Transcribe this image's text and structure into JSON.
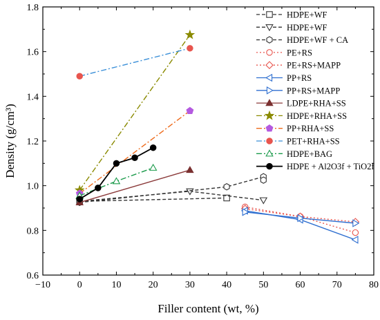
{
  "chart_data": {
    "type": "line",
    "xlabel": "Filler content (wt, %)",
    "ylabel": "Density (g/cm³)",
    "xlim": [
      -10,
      80
    ],
    "ylim": [
      0.6,
      1.8
    ],
    "xticks": [
      -10,
      0,
      10,
      20,
      30,
      40,
      50,
      60,
      70,
      80
    ],
    "yticks": [
      0.6,
      0.8,
      1.0,
      1.2,
      1.4,
      1.6,
      1.8
    ],
    "xtick_labels": [
      "−10",
      "0",
      "10",
      "20",
      "30",
      "40",
      "50",
      "60",
      "70",
      "80"
    ],
    "ytick_labels": [
      "0.6",
      "0.8",
      "1.0",
      "1.2",
      "1.4",
      "1.6",
      "1.8"
    ],
    "grid": false,
    "legend_position": "top-right",
    "series": [
      {
        "name": "HDPE+WF",
        "color": "#333333",
        "marker": "square",
        "filled": false,
        "dash": "5,3",
        "points": [
          [
            0,
            0.93
          ],
          [
            40,
            0.945
          ]
        ]
      },
      {
        "name": "HDPE+WF",
        "color": "#333333",
        "marker": "triangle-down",
        "filled": false,
        "dash": "5,3",
        "points": [
          [
            0,
            0.93
          ],
          [
            30,
            0.975
          ],
          [
            50,
            0.935
          ]
        ]
      },
      {
        "name": "HDPE+WF + CA",
        "color": "#333333",
        "marker": "hexagon",
        "filled": false,
        "dash": "5,3",
        "points": [
          [
            0,
            0.925
          ],
          [
            40,
            0.995
          ],
          [
            50,
            1.04
          ],
          [
            50,
            1.025
          ]
        ]
      },
      {
        "name": "PE+RS",
        "color": "#e8554e",
        "marker": "circle",
        "filled": false,
        "dash": "2,3",
        "points": [
          [
            45,
            0.905
          ],
          [
            60,
            0.862
          ],
          [
            75,
            0.79
          ]
        ]
      },
      {
        "name": "PE+RS+MAPP",
        "color": "#e8554e",
        "marker": "diamond",
        "filled": false,
        "dash": "2,3",
        "points": [
          [
            45,
            0.897
          ],
          [
            60,
            0.862
          ],
          [
            75,
            0.838
          ]
        ]
      },
      {
        "name": "PP+RS",
        "color": "#2f6fd0",
        "marker": "triangle-left",
        "filled": false,
        "dash": "",
        "points": [
          [
            45,
            0.888
          ],
          [
            60,
            0.848
          ],
          [
            75,
            0.758
          ]
        ]
      },
      {
        "name": "PP+RS+MAPP",
        "color": "#2f6fd0",
        "marker": "triangle-right",
        "filled": false,
        "dash": "",
        "points": [
          [
            45,
            0.882
          ],
          [
            60,
            0.855
          ],
          [
            75,
            0.832
          ]
        ]
      },
      {
        "name": "LDPE+RHA+SS",
        "color": "#8b3a3a",
        "marker": "triangle-up",
        "filled": true,
        "dash": "",
        "points": [
          [
            0,
            0.925
          ],
          [
            30,
            1.07
          ]
        ]
      },
      {
        "name": "HDPE+RHA+SS",
        "color": "#8a8a00",
        "marker": "star",
        "filled": true,
        "dash": "8,3,2,3",
        "points": [
          [
            0,
            0.98
          ],
          [
            30,
            1.675
          ]
        ]
      },
      {
        "name": "PP+RHA+SS",
        "color": "#ee6a1a",
        "marker": "pentagon",
        "filled": true,
        "dash": "8,3,2,3",
        "points": [
          [
            0,
            0.965
          ],
          [
            30,
            1.335
          ]
        ]
      },
      {
        "name": "PET+RHA+SS",
        "color": "#3a8fd8",
        "marker": "circle",
        "filled": true,
        "dash": "8,3,2,3",
        "points": [
          [
            0,
            1.49
          ],
          [
            30,
            1.615
          ]
        ]
      },
      {
        "name": "HDPE+BAG",
        "color": "#1a9a4a",
        "marker": "triangle-up",
        "filled": false,
        "dash": "8,3,2,3",
        "points": [
          [
            0,
            0.955
          ],
          [
            10,
            1.02
          ],
          [
            20,
            1.08
          ]
        ]
      },
      {
        "name": "HDPE + Al2O3f + TiO2f",
        "color": "#000000",
        "marker": "circle",
        "filled": true,
        "dash": "",
        "points": [
          [
            0,
            0.94
          ],
          [
            5,
            0.99
          ],
          [
            10,
            1.1
          ],
          [
            15,
            1.125
          ],
          [
            20,
            1.17
          ]
        ]
      }
    ],
    "marker_colors": {
      "PE+RS": "#e8554e",
      "PE+RS+MAPP": "#e8554e",
      "LDPE+RHA+SS": "#7a3030",
      "HDPE+RHA+SS": "#8a8a00",
      "PP+RHA+SS": "#b45ae0",
      "PET+RHA+SS": "#e8554e"
    }
  }
}
